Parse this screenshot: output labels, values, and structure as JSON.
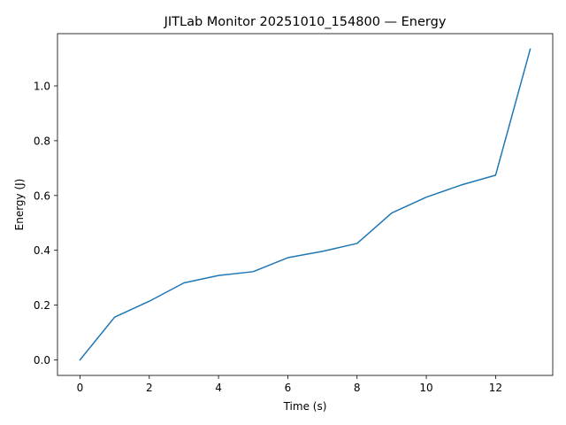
{
  "chart_data": {
    "type": "line",
    "title": "JITLab Monitor 20251010_154800 — Energy",
    "xlabel": "Time (s)",
    "ylabel": "Energy (J)",
    "x": [
      0,
      1,
      2,
      3,
      4,
      5,
      6,
      7,
      8,
      9,
      10,
      11,
      12,
      13
    ],
    "series": [
      {
        "values": [
          0.0,
          0.156,
          0.214,
          0.281,
          0.308,
          0.322,
          0.373,
          0.396,
          0.425,
          0.536,
          0.594,
          0.638,
          0.674,
          1.134
        ],
        "color": "#1f77b4"
      }
    ],
    "xlim": [
      -0.65,
      13.65
    ],
    "ylim": [
      -0.0567,
      1.1907
    ],
    "xticks": [
      0,
      2,
      4,
      6,
      8,
      10,
      12
    ],
    "xtick_labels": [
      "0",
      "2",
      "4",
      "6",
      "8",
      "10",
      "12"
    ],
    "yticks": [
      0.0,
      0.2,
      0.4,
      0.6,
      0.8,
      1.0
    ],
    "ytick_labels": [
      "0.0",
      "0.2",
      "0.4",
      "0.6",
      "0.8",
      "1.0"
    ],
    "grid": false,
    "legend": false
  }
}
